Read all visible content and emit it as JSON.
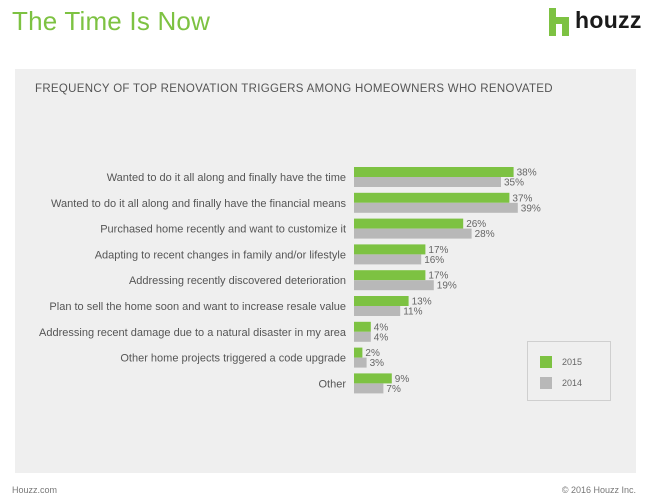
{
  "header": {
    "title": "The Time Is Now",
    "brand": "houzz"
  },
  "footer": {
    "left": "Houzz.com",
    "right": "© 2016 Houzz Inc."
  },
  "colors": {
    "accent": "#7dc242",
    "series_2015": "#7dc242",
    "series_2014": "#b8b8b8",
    "panel": "#efefef"
  },
  "icons": {
    "logo": "houzz-logo-icon"
  },
  "chart_data": {
    "type": "bar",
    "orientation": "horizontal",
    "title": "FREQUENCY OF TOP RENOVATION TRIGGERS AMONG HOMEOWNERS WHO RENOVATED",
    "categories": [
      "Wanted to do it all along and finally have the time",
      "Wanted to do it all along and finally have the financial means",
      "Purchased home recently and want to customize it",
      "Adapting to recent changes in family and/or lifestyle",
      "Addressing recently discovered deterioration",
      "Plan to sell the home soon and want to increase resale value",
      "Addressing recent damage due to a natural disaster in my area",
      "Other home projects triggered a code upgrade",
      "Other"
    ],
    "series": [
      {
        "name": "2015",
        "values": [
          38,
          37,
          26,
          17,
          17,
          13,
          4,
          2,
          9
        ]
      },
      {
        "name": "2014",
        "values": [
          35,
          39,
          28,
          16,
          19,
          11,
          4,
          3,
          7
        ]
      }
    ],
    "value_suffix": "%",
    "xlim": [
      0,
      100
    ],
    "grid": false,
    "legend_position": "bottom-right"
  }
}
